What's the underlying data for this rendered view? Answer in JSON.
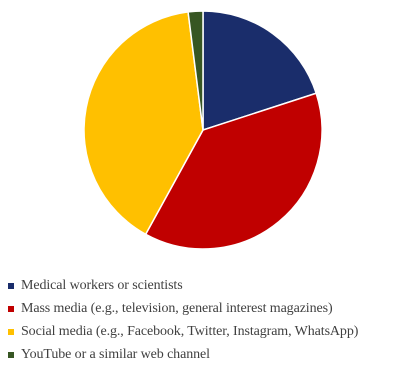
{
  "chart_data": {
    "type": "pie",
    "title": "",
    "categories": [
      "Medical workers or scientists",
      "Mass media (e.g., television, general interest magazines)",
      "Social media (e.g., Facebook, Twitter, Instagram, WhatsApp)",
      "YouTube or a similar web channel"
    ],
    "values": [
      20,
      38,
      40,
      2
    ],
    "colors": [
      "#1a2d6b",
      "#c00000",
      "#ffc000",
      "#375623"
    ],
    "start_angle_deg": 0,
    "direction": "clockwise",
    "legend_position": "bottom"
  }
}
